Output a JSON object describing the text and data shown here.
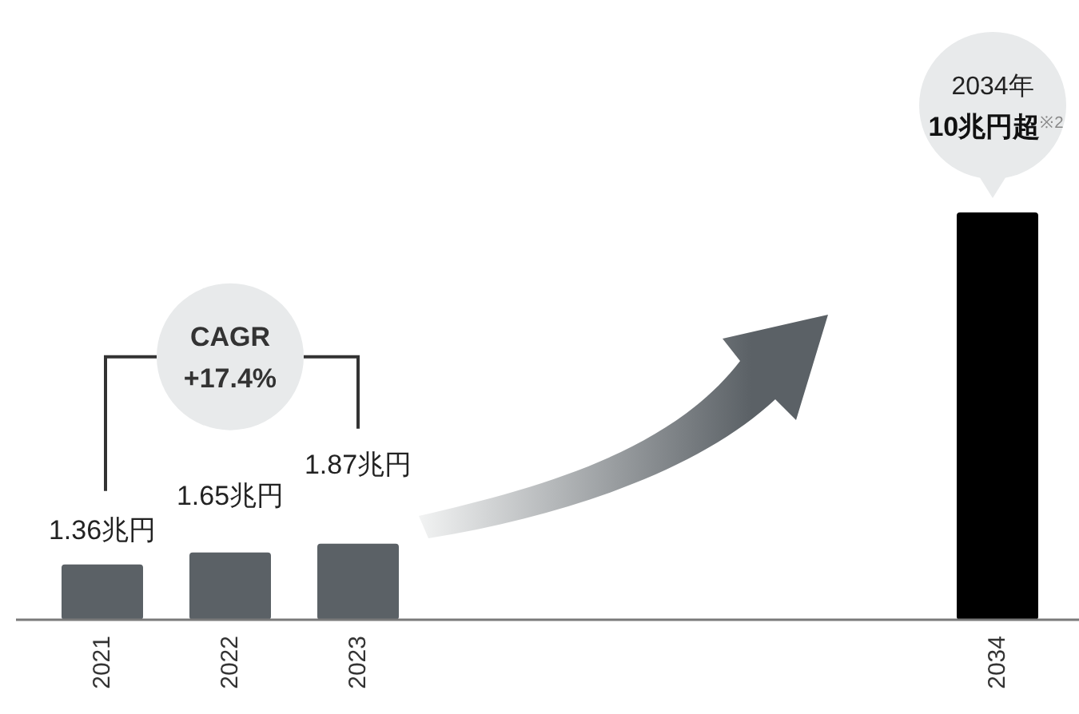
{
  "chart_data": {
    "type": "bar",
    "categories": [
      "2021",
      "2022",
      "2023",
      null,
      null,
      null,
      null,
      "2034"
    ],
    "values": [
      1.36,
      1.65,
      1.87,
      null,
      null,
      null,
      null,
      10
    ],
    "colors": [
      "#5b6166",
      "#5b6166",
      "#5b6166",
      null,
      null,
      null,
      null,
      "#000000"
    ],
    "value_labels": [
      "1.36兆円",
      "1.65兆円",
      "1.87兆円",
      null,
      null,
      null,
      null,
      "2034年 10兆円超$^{※2}$"
    ],
    "annotations": [
      "CAGR +17.4%"
    ]
  }
}
